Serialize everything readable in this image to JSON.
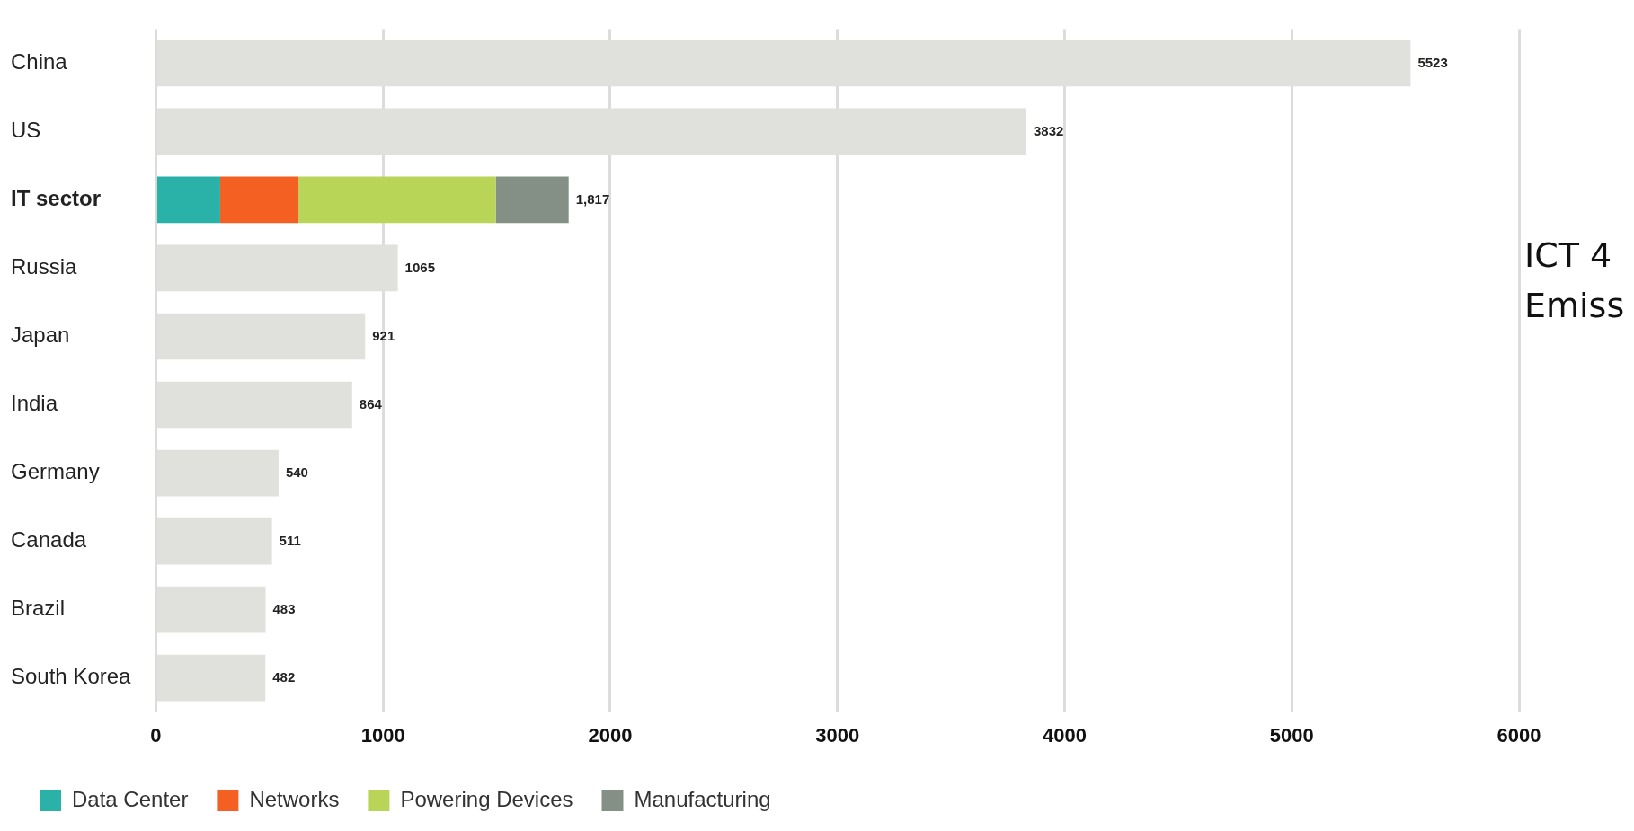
{
  "chart_data": {
    "type": "bar",
    "orientation": "horizontal",
    "stacked": true,
    "categories": [
      "China",
      "US",
      "IT sector",
      "Russia",
      "Japan",
      "India",
      "Germany",
      "Canada",
      "Brazil",
      "South Korea"
    ],
    "series": [
      {
        "color": "#e0e0dc",
        "values": [
          5523,
          3832,
          null,
          1065,
          921,
          864,
          540,
          511,
          483,
          482
        ]
      },
      {
        "name": "Data Center",
        "color": "#2bb2a8",
        "values": [
          null,
          null,
          283,
          null,
          null,
          null,
          null,
          null,
          null,
          null
        ]
      },
      {
        "name": "Networks",
        "color": "#f46022",
        "values": [
          null,
          null,
          345,
          null,
          null,
          null,
          null,
          null,
          null,
          null
        ]
      },
      {
        "name": "Powering Devices",
        "color": "#b8d558",
        "values": [
          null,
          null,
          868,
          null,
          null,
          null,
          null,
          null,
          null,
          null
        ]
      },
      {
        "name": "Manufacturing",
        "color": "#848f85",
        "values": [
          null,
          null,
          321,
          null,
          null,
          null,
          null,
          null,
          null,
          null
        ]
      }
    ],
    "totals": [
      "5523",
      "3832",
      "1,817",
      "1065",
      "921",
      "864",
      "540",
      "511",
      "483",
      "482"
    ],
    "xlim": [
      0,
      6000
    ],
    "xticks": [
      0,
      1000,
      2000,
      3000,
      4000,
      5000,
      6000
    ],
    "grid": "x",
    "legend": "bottom left",
    "annotations": [
      "ICT 4",
      "Emiss"
    ]
  }
}
